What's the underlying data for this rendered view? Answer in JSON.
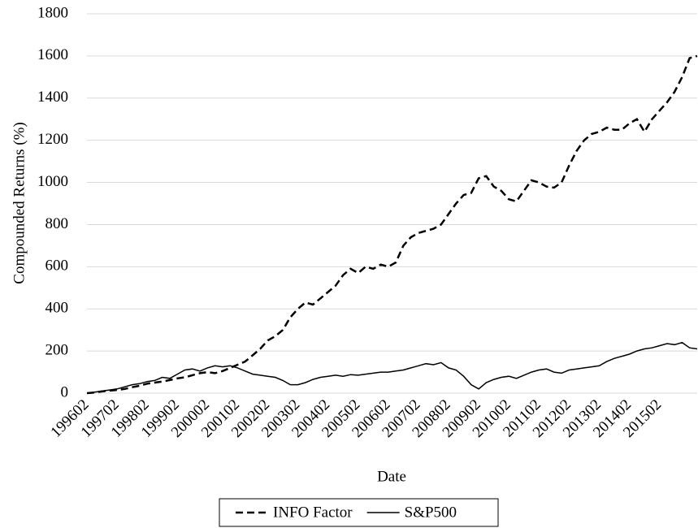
{
  "chart_data": {
    "type": "line",
    "x_label": "Date",
    "y_label": "Compounded Returns (%)",
    "categories": [
      "199602",
      null,
      null,
      null,
      "199702",
      null,
      null,
      null,
      "199802",
      null,
      null,
      null,
      "199902",
      null,
      null,
      null,
      "200002",
      null,
      null,
      null,
      "200102",
      null,
      null,
      null,
      "200202",
      null,
      null,
      null,
      "200302",
      null,
      null,
      null,
      "200402",
      null,
      null,
      null,
      "200502",
      null,
      null,
      null,
      "200602",
      null,
      null,
      null,
      "200702",
      null,
      null,
      null,
      "200802",
      null,
      null,
      null,
      "200902",
      null,
      null,
      null,
      "201002",
      null,
      null,
      null,
      "201102",
      null,
      null,
      null,
      "201202",
      null,
      null,
      null,
      "201302",
      null,
      null,
      null,
      "201402",
      null,
      null,
      null,
      "201502",
      null,
      null,
      null,
      null,
      null
    ],
    "series": [
      {
        "name": "INFO Factor",
        "color": "#000000",
        "dash": "dashed",
        "values": [
          0,
          3,
          8,
          12,
          15,
          20,
          28,
          35,
          45,
          50,
          55,
          62,
          70,
          75,
          85,
          95,
          100,
          95,
          105,
          120,
          135,
          150,
          180,
          210,
          250,
          270,
          300,
          360,
          400,
          430,
          420,
          450,
          480,
          510,
          560,
          590,
          570,
          600,
          590,
          610,
          600,
          620,
          700,
          740,
          760,
          770,
          780,
          800,
          850,
          900,
          940,
          950,
          1020,
          1030,
          980,
          960,
          920,
          910,
          960,
          1010,
          1000,
          980,
          975,
          1000,
          1080,
          1150,
          1200,
          1230,
          1240,
          1260,
          1250,
          1250,
          1280,
          1300,
          1240,
          1300,
          1340,
          1380,
          1430,
          1500,
          1590,
          1600
        ]
      },
      {
        "name": "S&P500",
        "color": "#000000",
        "dash": "solid",
        "values": [
          0,
          5,
          10,
          15,
          20,
          30,
          40,
          45,
          55,
          60,
          75,
          70,
          90,
          110,
          115,
          105,
          120,
          130,
          125,
          130,
          120,
          105,
          90,
          85,
          80,
          75,
          60,
          40,
          40,
          50,
          65,
          75,
          80,
          85,
          80,
          88,
          85,
          90,
          95,
          100,
          100,
          105,
          110,
          120,
          130,
          140,
          135,
          145,
          120,
          110,
          80,
          40,
          20,
          50,
          65,
          75,
          80,
          70,
          85,
          100,
          110,
          115,
          100,
          95,
          110,
          115,
          120,
          125,
          130,
          150,
          165,
          175,
          185,
          200,
          210,
          215,
          225,
          235,
          230,
          240,
          215,
          210
        ]
      }
    ],
    "ylim": [
      0,
      1800
    ],
    "yticks": [
      0,
      200,
      400,
      600,
      800,
      1000,
      1200,
      1400,
      1600,
      1800
    ],
    "grid": true,
    "legend": "bottom"
  }
}
